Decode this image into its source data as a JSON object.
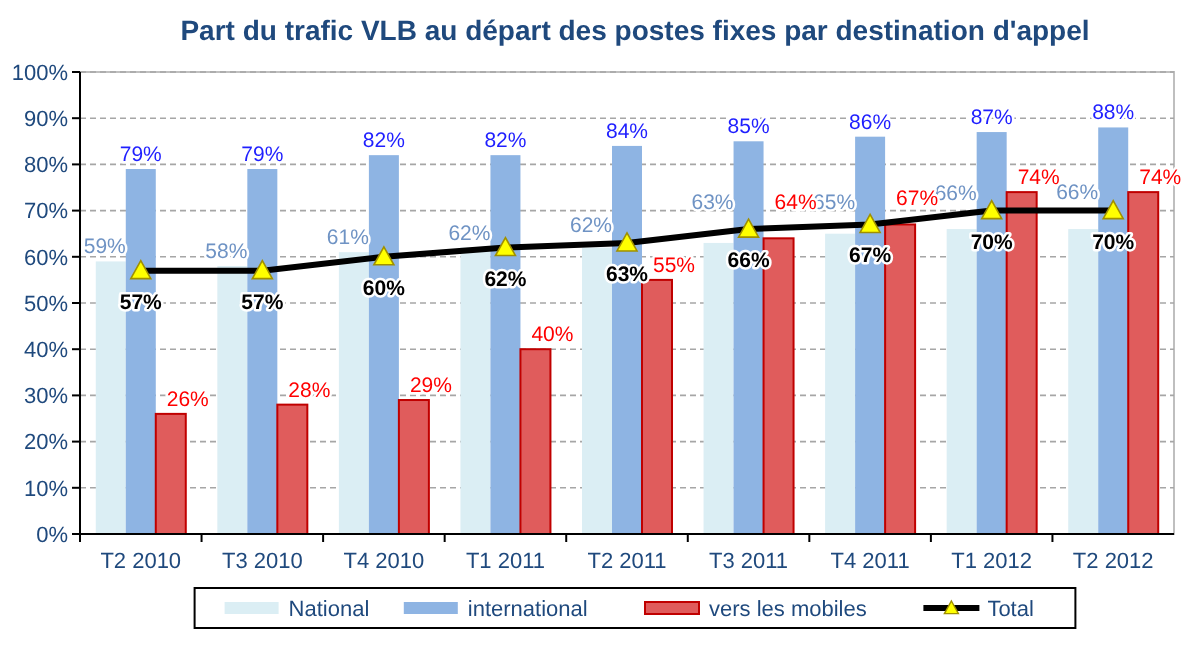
{
  "chart_data": {
    "type": "bar",
    "title": "Part du trafic VLB au départ des postes fixes par destination d'appel",
    "categories": [
      "T2 2010",
      "T3 2010",
      "T4 2010",
      "T1 2011",
      "T2 2011",
      "T3 2011",
      "T4 2011",
      "T1 2012",
      "T2 2012"
    ],
    "series": [
      {
        "name": "National",
        "color": "#dbeef4",
        "values": [
          59,
          58,
          61,
          62,
          62,
          63,
          65,
          66,
          66
        ],
        "value_labels": [
          "59%",
          "58%",
          "61%",
          "62%",
          "62%",
          "63%",
          "65%",
          "66%",
          "66%"
        ]
      },
      {
        "name": "international",
        "color": "#8eb4e3",
        "values": [
          79,
          79,
          82,
          82,
          84,
          85,
          86,
          87,
          88
        ],
        "value_labels": [
          "79%",
          "79%",
          "82%",
          "82%",
          "84%",
          "85%",
          "86%",
          "87%",
          "88%"
        ]
      },
      {
        "name": "vers les mobiles",
        "color": "#e05c5c",
        "values": [
          26,
          28,
          29,
          40,
          55,
          64,
          67,
          74,
          74
        ],
        "value_labels": [
          "26%",
          "28%",
          "29%",
          "40%",
          "55%",
          "64%",
          "67%",
          "74%",
          "74%"
        ]
      },
      {
        "name": "Total",
        "type": "line",
        "color": "#000000",
        "values": [
          57,
          57,
          60,
          62,
          63,
          66,
          67,
          70,
          70
        ],
        "value_labels": [
          "57%",
          "57%",
          "60%",
          "62%",
          "63%",
          "66%",
          "67%",
          "70%",
          "70%"
        ]
      }
    ],
    "ylim": [
      0,
      100
    ],
    "yticks": [
      {
        "value": 0,
        "label": "0%"
      },
      {
        "value": 10,
        "label": "10%"
      },
      {
        "value": 20,
        "label": "20%"
      },
      {
        "value": 30,
        "label": "30%"
      },
      {
        "value": 40,
        "label": "40%"
      },
      {
        "value": 50,
        "label": "50%"
      },
      {
        "value": 60,
        "label": "60%"
      },
      {
        "value": 70,
        "label": "70%"
      },
      {
        "value": 80,
        "label": "80%"
      },
      {
        "value": 90,
        "label": "90%"
      },
      {
        "value": 100,
        "label": "100%"
      }
    ],
    "grid": "y",
    "legend": "bottom",
    "marker": "triangle"
  }
}
